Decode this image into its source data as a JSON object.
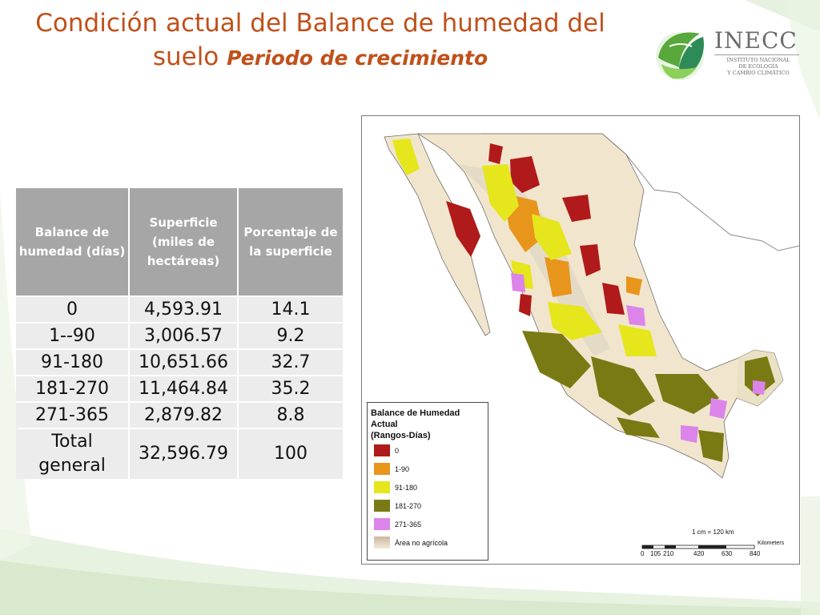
{
  "title": {
    "main": "Condición actual del Balance de humedad del suelo",
    "subtitle": "Periodo de crecimiento"
  },
  "logo": {
    "name": "INECC",
    "subtitle_line1": "Instituto Nacional",
    "subtitle_line2": "de Ecología",
    "subtitle_line3": "y Cambio Climático"
  },
  "table": {
    "headers": [
      "Balance de humedad (días)",
      "Superficie (miles de hectáreas)",
      "Porcentaje de la superficie"
    ],
    "rows": [
      [
        "0",
        "4,593.91",
        "14.1"
      ],
      [
        "1--90",
        "3,006.57",
        "9.2"
      ],
      [
        "91-180",
        "10,651.66",
        "32.7"
      ],
      [
        "181-270",
        "11,464.84",
        "35.2"
      ],
      [
        "271-365",
        "2,879.82",
        "8.8"
      ]
    ],
    "total": [
      "Total general",
      "32,596.79",
      "100"
    ]
  },
  "map": {
    "legend_title_line1": "Balance de Humedad Actual",
    "legend_title_line2": "(Rangos-Días)",
    "legend_items": [
      {
        "label": "0",
        "color": "#b01a1a"
      },
      {
        "label": "1-90",
        "color": "#e8951c"
      },
      {
        "label": "91-180",
        "color": "#e6e61c"
      },
      {
        "label": "181-270",
        "color": "#7a7a14"
      },
      {
        "label": "271-365",
        "color": "#dc84ea"
      },
      {
        "label": "Área no agrícola",
        "color": "#e6d7c0"
      }
    ],
    "scale_text": "1 cm = 120 km",
    "scale_units": "Kilometers",
    "scale_ticks": [
      "0",
      "105",
      "210",
      "420",
      "630",
      "840"
    ]
  },
  "colors": {
    "title": "#c0501a",
    "header_bg": "#a6a6a6",
    "cell_bg": "#ececec",
    "slide_accent_green": "#dcebd0",
    "land": "#f1e6cd"
  }
}
